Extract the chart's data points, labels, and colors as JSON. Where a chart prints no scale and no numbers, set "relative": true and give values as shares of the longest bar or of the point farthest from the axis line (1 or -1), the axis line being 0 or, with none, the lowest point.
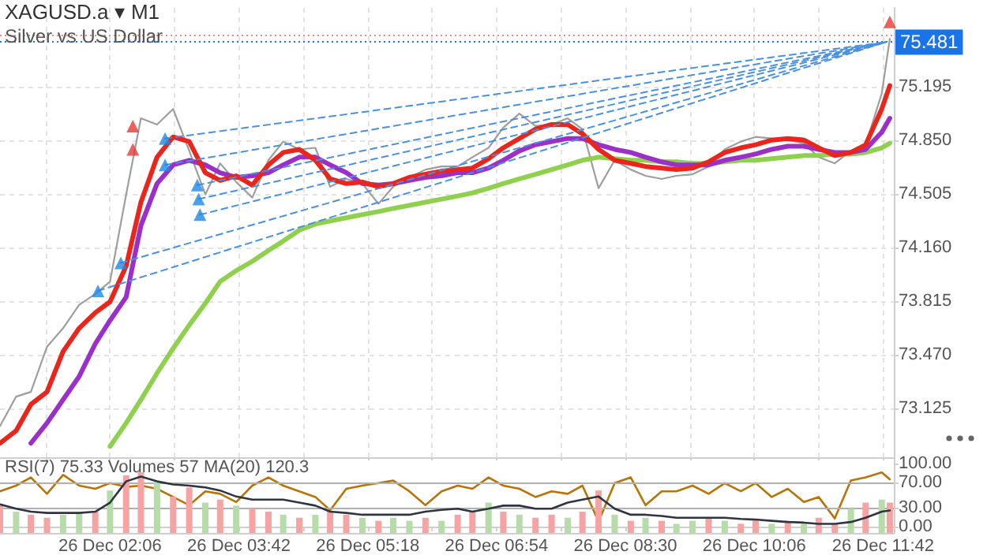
{
  "chart_data": [
    {
      "type": "line",
      "title": "XAGUSD.a ▾ M1",
      "subtitle": "Silver vs US Dollar",
      "x": [
        "--12-26T00:44",
        "--12-26T00:56",
        "--12-26T01:07",
        "--12-26T01:19",
        "--12-26T01:31",
        "--12-26T01:43",
        "--12-26T01:55",
        "--12-26T02:06",
        "--12-26T02:18",
        "--12-26T02:29",
        "--12-26T02:41",
        "--12-26T02:53",
        "--12-26T03:05",
        "--12-26T03:17",
        "--12-26T03:28",
        "--12-26T03:40",
        "--12-26T03:52",
        "--12-26T04:04",
        "--12-26T04:15",
        "--12-26T04:27",
        "--12-26T04:39",
        "--12-26T04:50",
        "--12-26T05:02",
        "--12-26T05:14",
        "--12-26T05:26",
        "--12-26T05:37",
        "--12-26T05:49",
        "--12-26T06:01",
        "--12-26T06:13",
        "--12-26T06:25",
        "--12-26T06:36",
        "--12-26T06:48",
        "--12-26T06:59",
        "--12-26T07:11",
        "--12-26T07:23",
        "--12-26T07:35",
        "--12-26T07:47",
        "--12-26T07:58",
        "--12-26T08:10",
        "--12-26T08:22",
        "--12-26T08:34",
        "--12-26T08:45",
        "--12-26T08:57",
        "--12-26T09:08",
        "--12-26T09:20",
        "--12-26T09:32",
        "--12-26T09:44",
        "--12-26T09:56",
        "--12-26T10:07",
        "--12-26T10:19",
        "--12-26T10:31",
        "--12-26T10:43",
        "--12-26T10:54",
        "--12-26T11:06",
        "--12-26T11:18",
        "--12-26T11:29",
        "--12-26T11:41",
        "--12-26T11:47"
      ],
      "xlim": [
        "--12-26T00:44",
        "--12-26T11:50"
      ],
      "xticks": [
        {
          "value": "--12-26T01:18",
          "label": null
        },
        {
          "value": "--12-26T02:06",
          "label": null
        },
        {
          "value": "--12-26T02:54",
          "label": null
        },
        {
          "value": "--12-26T03:42",
          "label": null
        },
        {
          "value": "--12-26T04:30",
          "label": null
        },
        {
          "value": "--12-26T05:18",
          "label": null
        },
        {
          "value": "--12-26T06:06",
          "label": null
        },
        {
          "value": "--12-26T06:54",
          "label": null
        },
        {
          "value": "--12-26T07:42",
          "label": null
        },
        {
          "value": "--12-26T08:30",
          "label": null
        },
        {
          "value": "--12-26T09:18",
          "label": null
        },
        {
          "value": "--12-26T10:06",
          "label": null
        },
        {
          "value": "--12-26T10:54",
          "label": null
        },
        {
          "value": "--12-26T11:42",
          "label": null
        }
      ],
      "ylim": [
        72.81,
        75.7
      ],
      "yticks": [
        73.125,
        {
          "value": 73.47,
          "label": "73.470"
        },
        73.815,
        {
          "value": 74.16,
          "label": "74.160"
        },
        74.505,
        {
          "value": 74.85,
          "label": "74.850"
        },
        75.195
      ],
      "tick_labels": "y",
      "grid": true,
      "ref_lines": [
        {
          "axis": "y",
          "value": 75.53,
          "label": null,
          "color": "#f28b82",
          "line_style": "dotted"
        },
        {
          "axis": "y",
          "value": 75.481,
          "label": "75.481",
          "color": "#1a73e8",
          "line_style": "dotted"
        }
      ],
      "series": [
        {
          "color": "#9e9e9e",
          "values": [
            73.01,
            73.2,
            73.23,
            73.52,
            73.64,
            73.79,
            73.86,
            73.94,
            74.5,
            74.99,
            74.95,
            75.05,
            74.78,
            74.5,
            74.7,
            74.58,
            74.48,
            74.72,
            74.84,
            74.79,
            74.8,
            74.55,
            74.6,
            74.57,
            74.44,
            74.55,
            74.61,
            74.66,
            74.68,
            74.68,
            74.74,
            74.8,
            74.93,
            75.02,
            74.94,
            74.95,
            74.99,
            74.92,
            74.54,
            74.72,
            74.66,
            74.62,
            74.6,
            74.62,
            74.63,
            74.68,
            74.79,
            74.84,
            74.87,
            74.86,
            74.85,
            74.83,
            74.74,
            74.7,
            74.78,
            74.82,
            75.15,
            75.5
          ]
        },
        {
          "color": "#8fd14f",
          "values": [
            null,
            null,
            null,
            null,
            null,
            null,
            null,
            72.88,
            73.03,
            73.18,
            73.35,
            73.51,
            73.66,
            73.8,
            73.94,
            74.01,
            74.07,
            74.14,
            74.2,
            74.27,
            74.31,
            74.33,
            74.35,
            74.37,
            74.39,
            74.41,
            74.43,
            74.45,
            74.47,
            74.49,
            74.51,
            74.54,
            74.57,
            74.6,
            74.63,
            74.66,
            74.69,
            74.72,
            74.74,
            74.73,
            74.72,
            74.72,
            74.71,
            74.71,
            74.7,
            74.7,
            74.71,
            74.72,
            74.72,
            74.73,
            74.74,
            74.75,
            74.75,
            74.76,
            74.76,
            74.77,
            74.8,
            74.83
          ]
        },
        {
          "color": "#9b30c8",
          "values": [
            null,
            null,
            72.9,
            73.03,
            73.18,
            73.33,
            73.54,
            73.69,
            73.84,
            74.3,
            74.57,
            74.69,
            74.72,
            74.69,
            74.64,
            74.61,
            74.62,
            74.64,
            74.69,
            74.74,
            74.74,
            74.69,
            74.64,
            74.57,
            74.56,
            74.57,
            74.59,
            74.61,
            74.62,
            74.64,
            74.64,
            74.67,
            74.72,
            74.78,
            74.82,
            74.84,
            74.86,
            74.86,
            74.82,
            74.79,
            74.77,
            74.74,
            74.71,
            74.69,
            74.69,
            74.69,
            74.72,
            74.74,
            74.76,
            74.79,
            74.81,
            74.81,
            74.79,
            74.77,
            74.77,
            74.79,
            74.9,
            74.99
          ]
        },
        {
          "color": "#e8261c",
          "values": [
            72.9,
            72.98,
            73.15,
            73.23,
            73.49,
            73.64,
            73.74,
            73.81,
            74.04,
            74.45,
            74.74,
            74.87,
            74.84,
            74.64,
            74.59,
            74.62,
            74.56,
            74.69,
            74.77,
            74.79,
            74.72,
            74.6,
            74.57,
            74.58,
            74.55,
            74.57,
            74.61,
            74.63,
            74.65,
            74.66,
            74.67,
            74.73,
            74.8,
            74.86,
            74.92,
            74.95,
            74.95,
            74.89,
            74.79,
            74.72,
            74.7,
            74.68,
            74.67,
            74.66,
            74.67,
            74.71,
            74.77,
            74.8,
            74.82,
            74.85,
            74.86,
            74.85,
            74.8,
            74.75,
            74.77,
            74.82,
            75.05,
            75.2
          ]
        },
        {
          "color": "#4a90e2",
          "line_style": "dashed",
          "x": [
            "--12-26T01:57",
            "--12-26T11:44"
          ],
          "values": [
            73.88,
            75.48
          ]
        },
        {
          "color": "#4a90e2",
          "line_style": "dashed",
          "x": [
            "--12-26T02:14",
            "--12-26T11:44"
          ],
          "values": [
            74.06,
            75.48
          ]
        },
        {
          "color": "#4a90e2",
          "line_style": "dashed",
          "x": [
            "--12-26T02:47",
            "--12-26T11:44"
          ],
          "values": [
            74.86,
            75.48
          ]
        },
        {
          "color": "#4a90e2",
          "line_style": "dashed",
          "x": [
            "--12-26T02:47",
            "--12-26T11:44"
          ],
          "values": [
            74.69,
            75.48
          ]
        },
        {
          "color": "#4a90e2",
          "line_style": "dashed",
          "x": [
            "--12-26T03:11",
            "--12-26T11:44"
          ],
          "values": [
            74.56,
            75.48
          ]
        },
        {
          "color": "#4a90e2",
          "line_style": "dashed",
          "x": [
            "--12-26T03:12",
            "--12-26T11:44"
          ],
          "values": [
            74.47,
            75.48
          ]
        },
        {
          "color": "#4a90e2",
          "line_style": "dashed",
          "x": [
            "--12-26T03:13",
            "--12-26T11:44"
          ],
          "values": [
            74.37,
            75.48
          ]
        },
        {
          "type": "scatter",
          "color": "#1e88e5",
          "marker": "triangle",
          "x": [
            "--12-26T01:57",
            "--12-26T02:14",
            "--12-26T02:47",
            "--12-26T02:47",
            "--12-26T03:11",
            "--12-26T03:12",
            "--12-26T03:13"
          ],
          "values": [
            73.88,
            74.06,
            74.86,
            74.69,
            74.56,
            74.47,
            74.37
          ]
        },
        {
          "type": "scatter",
          "color": "#e53935",
          "marker": "triangle",
          "x": [
            "--12-26T02:23",
            "--12-26T02:23",
            "--12-26T11:47"
          ],
          "values": [
            74.94,
            74.79,
            75.61
          ]
        }
      ]
    },
    {
      "type": "line",
      "title": "RSI(7) 75.33 Volumes 57 MA(20) 120.3",
      "x": [
        "--12-26T00:44",
        "--12-26T00:56",
        "--12-26T01:07",
        "--12-26T01:19",
        "--12-26T01:31",
        "--12-26T01:43",
        "--12-26T01:55",
        "--12-26T02:06",
        "--12-26T02:18",
        "--12-26T02:29",
        "--12-26T02:41",
        "--12-26T02:53",
        "--12-26T03:05",
        "--12-26T03:17",
        "--12-26T03:28",
        "--12-26T03:40",
        "--12-26T03:52",
        "--12-26T04:04",
        "--12-26T04:15",
        "--12-26T04:27",
        "--12-26T04:39",
        "--12-26T04:50",
        "--12-26T05:02",
        "--12-26T05:14",
        "--12-26T05:26",
        "--12-26T05:37",
        "--12-26T05:49",
        "--12-26T06:01",
        "--12-26T06:13",
        "--12-26T06:25",
        "--12-26T06:36",
        "--12-26T06:48",
        "--12-26T06:59",
        "--12-26T07:11",
        "--12-26T07:23",
        "--12-26T07:35",
        "--12-26T07:47",
        "--12-26T07:58",
        "--12-26T08:10",
        "--12-26T08:22",
        "--12-26T08:34",
        "--12-26T08:45",
        "--12-26T08:57",
        "--12-26T09:08",
        "--12-26T09:20",
        "--12-26T09:32",
        "--12-26T09:44",
        "--12-26T09:56",
        "--12-26T10:07",
        "--12-26T10:19",
        "--12-26T10:31",
        "--12-26T10:43",
        "--12-26T10:54",
        "--12-26T11:06",
        "--12-26T11:18",
        "--12-26T11:29",
        "--12-26T11:41",
        "--12-26T11:47"
      ],
      "xlim": [
        "--12-26T00:44",
        "--12-26T11:50"
      ],
      "xticks": [
        {
          "value": "--12-26T01:18",
          "label": null
        },
        {
          "value": "--12-26T02:06",
          "label": "26 Dec 02:06"
        },
        {
          "value": "--12-26T02:54",
          "label": null
        },
        {
          "value": "--12-26T03:42",
          "label": "26 Dec 03:42"
        },
        {
          "value": "--12-26T04:30",
          "label": null
        },
        {
          "value": "--12-26T05:18",
          "label": "26 Dec 05:18"
        },
        {
          "value": "--12-26T06:06",
          "label": null
        },
        {
          "value": "--12-26T06:54",
          "label": "26 Dec 06:54"
        },
        {
          "value": "--12-26T07:42",
          "label": null
        },
        {
          "value": "--12-26T08:30",
          "label": "26 Dec 08:30"
        },
        {
          "value": "--12-26T09:18",
          "label": null
        },
        {
          "value": "--12-26T10:06",
          "label": "26 Dec 10:06"
        },
        {
          "value": "--12-26T10:54",
          "label": null
        },
        {
          "value": "--12-26T11:42",
          "label": "26 Dec 11:42"
        }
      ],
      "ylim": [
        -10,
        115
      ],
      "yticks": [
        {
          "value": 0,
          "label": "0.00"
        },
        {
          "value": 30,
          "label": "30.00"
        },
        {
          "value": 70,
          "label": "70.00"
        },
        {
          "value": 100,
          "label": "100.00"
        }
      ],
      "ref_lines": [
        {
          "axis": "y",
          "value": 70,
          "label": null,
          "color": "#b0b0b0",
          "line_style": "solid"
        },
        {
          "axis": "y",
          "value": 30,
          "label": null,
          "color": "#b0b0b0",
          "line_style": "solid"
        }
      ],
      "series": [
        {
          "color": "#b8730a",
          "values": [
            56,
            65,
            78,
            52,
            82,
            65,
            60,
            69,
            63,
            65,
            60,
            47,
            34,
            56,
            52,
            39,
            65,
            78,
            65,
            56,
            47,
            26,
            60,
            65,
            69,
            73,
            56,
            34,
            56,
            65,
            60,
            78,
            65,
            60,
            47,
            56,
            52,
            65,
            8,
            69,
            78,
            34,
            56,
            56,
            65,
            52,
            69,
            56,
            69,
            47,
            60,
            39,
            47,
            13,
            73,
            78,
            86,
            75
          ]
        }
      ]
    },
    {
      "type": "bar",
      "relative": true,
      "tick_labels": false,
      "x": [
        "--12-26T00:44",
        "--12-26T00:56",
        "--12-26T01:07",
        "--12-26T01:19",
        "--12-26T01:31",
        "--12-26T01:43",
        "--12-26T01:55",
        "--12-26T02:06",
        "--12-26T02:18",
        "--12-26T02:29",
        "--12-26T02:41",
        "--12-26T02:53",
        "--12-26T03:05",
        "--12-26T03:17",
        "--12-26T03:28",
        "--12-26T03:40",
        "--12-26T03:52",
        "--12-26T04:04",
        "--12-26T04:15",
        "--12-26T04:27",
        "--12-26T04:39",
        "--12-26T04:50",
        "--12-26T05:02",
        "--12-26T05:14",
        "--12-26T05:26",
        "--12-26T05:37",
        "--12-26T05:49",
        "--12-26T06:01",
        "--12-26T06:13",
        "--12-26T06:25",
        "--12-26T06:36",
        "--12-26T06:48",
        "--12-26T06:59",
        "--12-26T07:11",
        "--12-26T07:23",
        "--12-26T07:35",
        "--12-26T07:47",
        "--12-26T07:58",
        "--12-26T08:10",
        "--12-26T08:22",
        "--12-26T08:34",
        "--12-26T08:45",
        "--12-26T08:57",
        "--12-26T09:08",
        "--12-26T09:20",
        "--12-26T09:32",
        "--12-26T09:44",
        "--12-26T09:56",
        "--12-26T10:07",
        "--12-26T10:19",
        "--12-26T10:31",
        "--12-26T10:43",
        "--12-26T10:54",
        "--12-26T11:06",
        "--12-26T11:18",
        "--12-26T11:29",
        "--12-26T11:41",
        "--12-26T11:47"
      ],
      "xlim": [
        "--12-26T00:44",
        "--12-26T11:50"
      ],
      "series": [
        {
          "color": "#f5a3a3",
          "colors": [
            "#f5a3a3",
            "#b7dba9",
            "#f5a3a3",
            "#f5a3a3",
            "#b7dba9",
            "#b7dba9",
            "#f5a3a3",
            "#b7dba9",
            "#f5a3a3",
            "#f5a3a3",
            "#b7dba9",
            "#f5a3a3",
            "#f5a3a3",
            "#b7dba9",
            "#f5a3a3",
            "#b7dba9",
            "#f5a3a3",
            "#f5a3a3",
            "#b7dba9",
            "#f5a3a3",
            "#b7dba9",
            "#f5a3a3",
            "#f5a3a3",
            "#b7dba9",
            "#f5a3a3",
            "#b7dba9",
            "#b7dba9",
            "#f5a3a3",
            "#b7dba9",
            "#f5a3a3",
            "#f5a3a3",
            "#b7dba9",
            "#f5a3a3",
            "#b7dba9",
            "#f5a3a3",
            "#f5a3a3",
            "#b7dba9",
            "#f5a3a3",
            "#f5a3a3",
            "#b7dba9",
            "#f5a3a3",
            "#b7dba9",
            "#f5a3a3",
            "#b7dba9",
            "#b7dba9",
            "#f5a3a3",
            "#b7dba9",
            "#f5a3a3",
            "#f5a3a3",
            "#b7dba9",
            "#f5a3a3",
            "#b7dba9",
            "#f5a3a3",
            "#f5a3a3",
            "#b7dba9",
            "#f5a3a3",
            "#b7dba9",
            "#f5a3a3"
          ],
          "values": [
            0.45,
            0.35,
            0.3,
            0.25,
            0.3,
            0.35,
            0.35,
            0.7,
            0.95,
            1,
            0.85,
            0.6,
            0.75,
            0.5,
            0.55,
            0.45,
            0.4,
            0.35,
            0.3,
            0.25,
            0.3,
            0.35,
            0.3,
            0.25,
            0.2,
            0.25,
            0.2,
            0.25,
            0.2,
            0.3,
            0.35,
            0.5,
            0.35,
            0.3,
            0.25,
            0.3,
            0.25,
            0.35,
            0.7,
            0.3,
            0.2,
            0.25,
            0.2,
            0.15,
            0.2,
            0.25,
            0.2,
            0.15,
            0.2,
            0.15,
            0.2,
            0.15,
            0.25,
            0.15,
            0.4,
            0.5,
            0.55,
            0.5
          ]
        },
        {
          "type": "line",
          "color": "#2e3440",
          "values": [
            0.47,
            0.4,
            0.35,
            0.33,
            0.33,
            0.33,
            0.35,
            0.5,
            0.85,
            0.93,
            0.85,
            0.8,
            0.78,
            0.75,
            0.7,
            0.6,
            0.55,
            0.55,
            0.55,
            0.5,
            0.45,
            0.35,
            0.33,
            0.3,
            0.3,
            0.3,
            0.3,
            0.35,
            0.38,
            0.4,
            0.35,
            0.4,
            0.45,
            0.45,
            0.4,
            0.4,
            0.5,
            0.55,
            0.6,
            0.4,
            0.3,
            0.3,
            0.28,
            0.25,
            0.25,
            0.25,
            0.25,
            0.23,
            0.22,
            0.2,
            0.18,
            0.17,
            0.15,
            0.15,
            0.18,
            0.25,
            0.35,
            0.37
          ]
        }
      ]
    }
  ]
}
